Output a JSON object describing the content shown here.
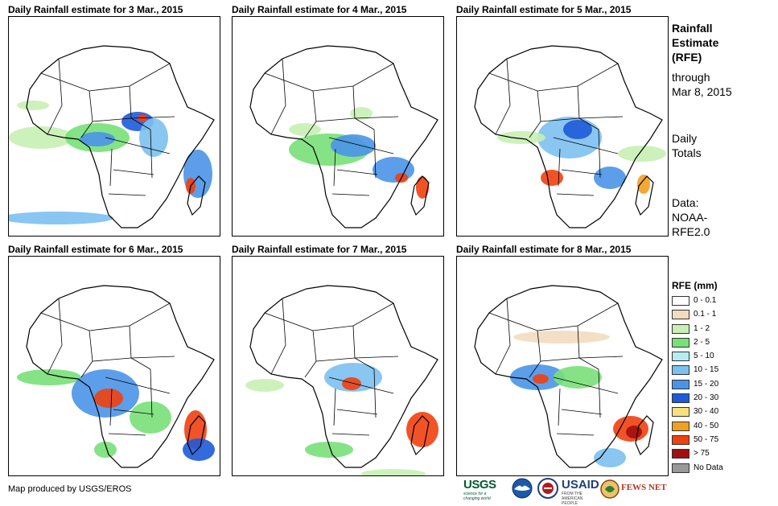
{
  "panels": [
    {
      "title": "Daily Rainfall estimate for 3 Mar., 2015"
    },
    {
      "title": "Daily Rainfall estimate for 4 Mar., 2015"
    },
    {
      "title": "Daily Rainfall estimate for 5 Mar., 2015"
    },
    {
      "title": "Daily Rainfall estimate for 6 Mar., 2015"
    },
    {
      "title": "Daily Rainfall estimate for 7 Mar., 2015"
    },
    {
      "title": "Daily Rainfall estimate for 8 Mar., 2015"
    }
  ],
  "side": {
    "title_lines": [
      "Rainfall",
      "Estimate",
      "(RFE)"
    ],
    "through_lines": [
      "through",
      "Mar 8, 2015"
    ],
    "totals_lines": [
      "Daily",
      "Totals"
    ],
    "data_lines": [
      "Data:",
      "NOAA-",
      "RFE2.0"
    ]
  },
  "legend": {
    "title": "RFE (mm)",
    "items": [
      {
        "label": "0 - 0.1",
        "color": "#ffffff"
      },
      {
        "label": "0.1 - 1",
        "color": "#f2dcc0"
      },
      {
        "label": "1 - 2",
        "color": "#c8f0b4"
      },
      {
        "label": "2 - 5",
        "color": "#78e078"
      },
      {
        "label": "5 - 10",
        "color": "#b4ecf4"
      },
      {
        "label": "10 - 15",
        "color": "#7cc0f0"
      },
      {
        "label": "15 - 20",
        "color": "#4a94e8"
      },
      {
        "label": "20 - 30",
        "color": "#1e5ad8"
      },
      {
        "label": "30 - 40",
        "color": "#f8e07c"
      },
      {
        "label": "40 - 50",
        "color": "#f0a020"
      },
      {
        "label": "50 - 75",
        "color": "#f04010"
      },
      {
        "label": "> 75",
        "color": "#a01010"
      },
      {
        "label": "No Data",
        "color": "#999999"
      }
    ]
  },
  "footer": {
    "credit": "Map produced by USGS/EROS",
    "logos": {
      "usgs": "USGS",
      "usgs_tagline": "science for a changing world",
      "usaid": "USAID",
      "usaid_tagline": "FROM THE AMERICAN PEOPLE",
      "fews": "FEWS NET"
    }
  }
}
